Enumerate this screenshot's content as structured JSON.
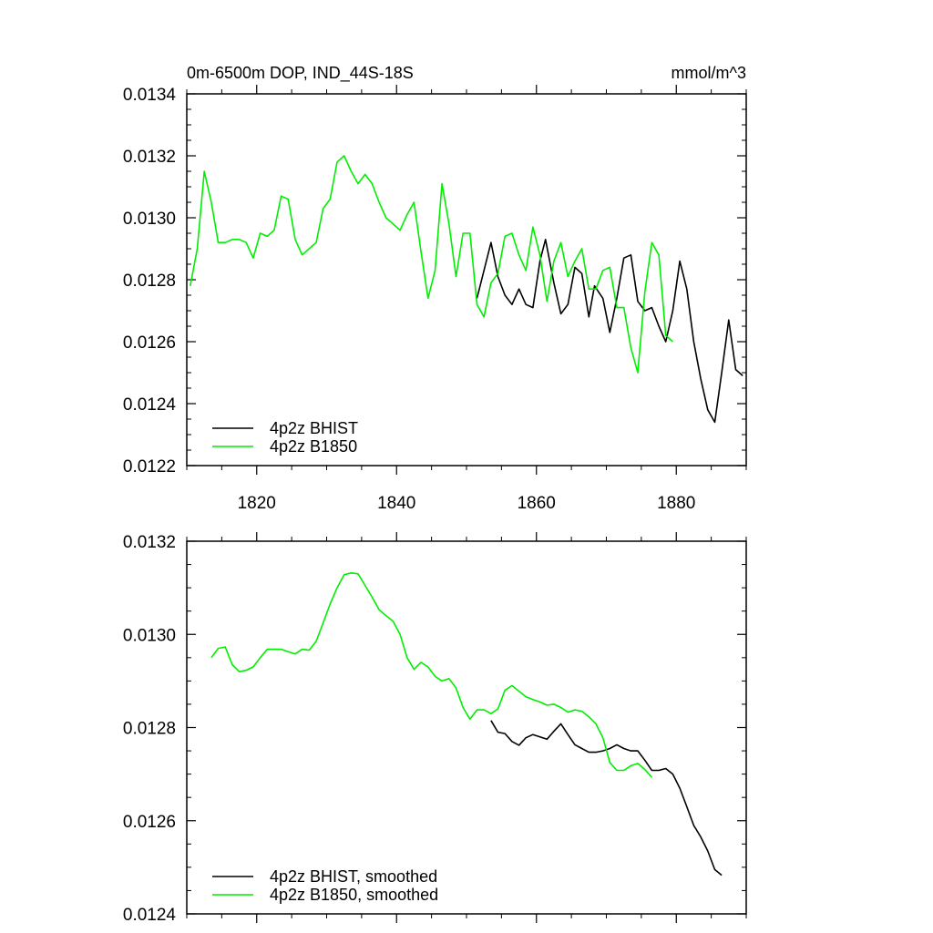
{
  "chart_data": [
    {
      "type": "line",
      "title": "0m-6500m DOP, IND_44S-18S",
      "units": "mmol/m^3",
      "xlim": [
        1810,
        1890
      ],
      "ylim": [
        0.0122,
        0.0134
      ],
      "xticks": [
        1820,
        1840,
        1860,
        1880
      ],
      "xtick_labels": [
        "1820",
        "1840",
        "1860",
        "1880"
      ],
      "yticks": [
        0.0122,
        0.0124,
        0.0126,
        0.0128,
        0.013,
        0.0132,
        0.0134
      ],
      "ytick_labels": [
        "0.0122",
        "0.0124",
        "0.0126",
        "0.0128",
        "0.0130",
        "0.0132",
        "0.0134"
      ],
      "legend": "bottom-left",
      "series": [
        {
          "name": "4p2z BHIST",
          "color": "#000000",
          "x": [
            1851.5,
            1853.5,
            1854.5,
            1855.5,
            1856.5,
            1857.5,
            1858.5,
            1859.5,
            1860.5,
            1861.3,
            1862.5,
            1863.5,
            1864.5,
            1865.5,
            1866.5,
            1867.5,
            1868.3,
            1869.5,
            1870.5,
            1871.5,
            1872.5,
            1873.5,
            1874.5,
            1875.5,
            1876.5,
            1877.5,
            1878.5,
            1879.5,
            1880.5,
            1881.5,
            1882.5,
            1883.5,
            1884.5,
            1885.5,
            1886.5,
            1887.5,
            1888.5,
            1889.5
          ],
          "y": [
            0.01274,
            0.01292,
            0.01281,
            0.01275,
            0.01272,
            0.01277,
            0.01272,
            0.01271,
            0.01286,
            0.01293,
            0.01279,
            0.01269,
            0.01272,
            0.01284,
            0.01282,
            0.01268,
            0.01278,
            0.01274,
            0.01263,
            0.01274,
            0.01287,
            0.01288,
            0.01273,
            0.0127,
            0.01271,
            0.01265,
            0.0126,
            0.0127,
            0.01286,
            0.01277,
            0.0126,
            0.01248,
            0.01238,
            0.01234,
            0.0125,
            0.01267,
            0.01251,
            0.01249
          ]
        },
        {
          "name": "4p2z B1850",
          "color": "#00ee00",
          "x": [
            1810.5,
            1811.5,
            1812.5,
            1813.5,
            1814.5,
            1815.5,
            1816.5,
            1817.5,
            1818.5,
            1819.5,
            1820.5,
            1821.5,
            1822.5,
            1823.5,
            1824.5,
            1825.5,
            1826.5,
            1827.5,
            1828.5,
            1829.5,
            1830.5,
            1831.5,
            1832.5,
            1833.5,
            1834.5,
            1835.5,
            1836.5,
            1837.5,
            1838.5,
            1839.5,
            1840.5,
            1841.5,
            1842.5,
            1843.5,
            1844.5,
            1845.5,
            1846.5,
            1847.5,
            1848.5,
            1849.5,
            1850.5,
            1851.5,
            1852.5,
            1853.5,
            1854.5,
            1855.5,
            1856.5,
            1857.5,
            1858.5,
            1859.5,
            1860.5,
            1861.5,
            1862.5,
            1863.5,
            1864.5,
            1865.5,
            1866.5,
            1867.5,
            1868.5,
            1869.5,
            1870.5,
            1871.5,
            1872.5,
            1873.5,
            1874.5,
            1875.5,
            1876.5,
            1877.5,
            1878.5,
            1879.5
          ],
          "y": [
            0.01278,
            0.0129,
            0.01315,
            0.01305,
            0.01292,
            0.01292,
            0.01293,
            0.01293,
            0.01292,
            0.01287,
            0.01295,
            0.01294,
            0.01296,
            0.01307,
            0.01306,
            0.01293,
            0.01288,
            0.0129,
            0.01292,
            0.01303,
            0.01306,
            0.01318,
            0.0132,
            0.01315,
            0.01311,
            0.01314,
            0.01311,
            0.01305,
            0.013,
            0.01298,
            0.01296,
            0.01301,
            0.01305,
            0.01289,
            0.01274,
            0.01283,
            0.01311,
            0.01298,
            0.01281,
            0.01295,
            0.01295,
            0.01272,
            0.01268,
            0.01279,
            0.01282,
            0.01294,
            0.01295,
            0.01288,
            0.01283,
            0.01297,
            0.01288,
            0.01273,
            0.01286,
            0.01292,
            0.01281,
            0.01286,
            0.0129,
            0.01277,
            0.01277,
            0.01283,
            0.01284,
            0.01271,
            0.01271,
            0.01258,
            0.0125,
            0.01276,
            0.01292,
            0.01288,
            0.01262,
            0.0126
          ]
        }
      ]
    },
    {
      "type": "line",
      "xlim": [
        1810,
        1890
      ],
      "ylim": [
        0.0124,
        0.0132
      ],
      "xticks": [
        1820,
        1840,
        1860,
        1880
      ],
      "yticks": [
        0.0124,
        0.0126,
        0.0128,
        0.013,
        0.0132
      ],
      "ytick_labels": [
        "0.0124",
        "0.0126",
        "0.0128",
        "0.0130",
        "0.0132"
      ],
      "legend": "bottom-left",
      "series": [
        {
          "name": "4p2z BHIST, smoothed",
          "color": "#000000",
          "x": [
            1853.5,
            1854.5,
            1855.5,
            1856.5,
            1857.5,
            1858.5,
            1859.5,
            1860.5,
            1861.5,
            1862.5,
            1863.5,
            1864.5,
            1865.5,
            1866.5,
            1867.5,
            1868.5,
            1869.5,
            1870.5,
            1871.5,
            1872.5,
            1873.5,
            1874.5,
            1875.5,
            1876.5,
            1877.5,
            1878.5,
            1879.5,
            1880.5,
            1881.5,
            1882.5,
            1883.5,
            1884.5,
            1885.5,
            1886.5
          ],
          "y": [
            0.012815,
            0.01279,
            0.012787,
            0.01277,
            0.012762,
            0.012778,
            0.012785,
            0.01278,
            0.012775,
            0.012792,
            0.012808,
            0.012785,
            0.012763,
            0.012755,
            0.012747,
            0.012747,
            0.01275,
            0.012755,
            0.012763,
            0.012755,
            0.01275,
            0.01275,
            0.01273,
            0.012708,
            0.012708,
            0.012712,
            0.0127,
            0.01267,
            0.01263,
            0.01259,
            0.012565,
            0.012535,
            0.012495,
            0.012483
          ]
        },
        {
          "name": "4p2z B1850, smoothed",
          "color": "#00ee00",
          "x": [
            1813.5,
            1814.5,
            1815.5,
            1816.5,
            1817.5,
            1818.5,
            1819.5,
            1820.5,
            1821.5,
            1822.5,
            1823.5,
            1824.5,
            1825.5,
            1826.5,
            1827.5,
            1828.5,
            1829.5,
            1830.5,
            1831.5,
            1832.5,
            1833.5,
            1834.5,
            1835.5,
            1836.5,
            1837.5,
            1838.5,
            1839.5,
            1840.5,
            1841.5,
            1842.5,
            1843.5,
            1844.5,
            1845.5,
            1846.5,
            1847.5,
            1848.5,
            1849.5,
            1850.5,
            1851.5,
            1852.5,
            1853.5,
            1854.5,
            1855.5,
            1856.5,
            1857.5,
            1858.5,
            1859.5,
            1860.5,
            1861.5,
            1862.5,
            1863.5,
            1864.5,
            1865.5,
            1866.5,
            1867.5,
            1868.5,
            1869.5,
            1870.5,
            1871.5,
            1872.5,
            1873.5,
            1874.5,
            1875.5,
            1876.5
          ],
          "y": [
            0.01295,
            0.01297,
            0.012973,
            0.012935,
            0.01292,
            0.012923,
            0.01293,
            0.01295,
            0.012968,
            0.012968,
            0.012968,
            0.012963,
            0.012958,
            0.012968,
            0.012966,
            0.012985,
            0.013025,
            0.013065,
            0.0131,
            0.013128,
            0.013132,
            0.01313,
            0.013105,
            0.01308,
            0.013053,
            0.01304,
            0.013028,
            0.013,
            0.01295,
            0.012925,
            0.01294,
            0.01293,
            0.01291,
            0.0129,
            0.012905,
            0.012885,
            0.012843,
            0.012818,
            0.012838,
            0.012838,
            0.01283,
            0.01284,
            0.01288,
            0.01289,
            0.012878,
            0.012866,
            0.01286,
            0.012855,
            0.012848,
            0.01285,
            0.012843,
            0.012833,
            0.012838,
            0.012835,
            0.012823,
            0.012808,
            0.012778,
            0.012725,
            0.012708,
            0.012708,
            0.012718,
            0.012723,
            0.01271,
            0.012693
          ]
        }
      ]
    }
  ]
}
